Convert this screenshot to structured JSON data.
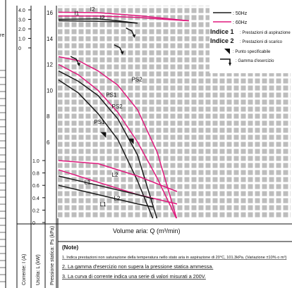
{
  "page": {
    "left_fragment": "re"
  },
  "labels": {
    "current_axis": "Corrente: I (A)",
    "output_axis": "Uscita: L (kW)",
    "pressure_axis": "Pressione statica: Ps (kPa)",
    "x_axis": "Volume aria: Q (m³/min)"
  },
  "legend": {
    "line_50": ": 50Hz",
    "line_60": ": 60Hz",
    "index1_key": "Indice 1",
    "index1_text": ": Prestazioni di aspirazione",
    "index2_key": "Indice 2",
    "index2_text": ": Prestazioni di scarico",
    "triangle_text": ": Punto specificabile",
    "range_text": ": Gamma d'esercizio"
  },
  "notes": {
    "title": "(Note)",
    "n1": "1. Indica prestazioni non saturazione della temperatura nello stato aria in aspirazione di 20°C, 101.3kPa. (Variazione ±10% o m³)",
    "n2": "2. La gamma d'esercizio non supera la pressione statica ammessa.",
    "n3": "3. La curva di corrente indica una serie di valori misurati a 200V."
  },
  "colors": {
    "hz50": "#1a1a1a",
    "hz60": "#e0197d",
    "grid": "#222222",
    "cell": "#bfbfbf"
  },
  "chart_data": {
    "type": "line",
    "x": {
      "label": "Volume aria: Q (m³/min)",
      "lim": [
        0,
        5
      ],
      "ticks": [
        0,
        1,
        2,
        3,
        4
      ]
    },
    "axes": {
      "current": {
        "label": "Corrente: I (A)",
        "ticks": [
          "0",
          "1.0",
          "2.0",
          "3.0",
          "4.0"
        ]
      },
      "output": {
        "label": "Uscita: L (kW)",
        "ticks": [
          "0",
          "0.2",
          "0.4",
          "0.6",
          "0.8",
          "1.0"
        ]
      },
      "pressure": {
        "label": "Pressione statica: Ps (kPa)",
        "lim": [
          0,
          16
        ],
        "ticks": [
          "6",
          "8",
          "10",
          "12",
          "14",
          "16"
        ]
      }
    },
    "series": [
      {
        "name": "I2",
        "freq": "60Hz",
        "x": [
          0,
          1,
          2,
          2.7,
          3.3
        ],
        "y_current": [
          3.75,
          3.7,
          3.4,
          3.1,
          2.85
        ]
      },
      {
        "name": "I1",
        "freq": "60Hz",
        "x": [
          0,
          1,
          2,
          2.7,
          3.3
        ],
        "y_current": [
          3.35,
          3.35,
          3.2,
          3.0,
          2.85
        ]
      },
      {
        "name": "I1",
        "freq": "50Hz",
        "x": [
          0,
          1,
          1.5,
          2.0
        ],
        "y_current": [
          3.0,
          3.05,
          2.85,
          2.6
        ]
      },
      {
        "name": "I2",
        "freq": "50Hz",
        "x": [
          0,
          1,
          1.5,
          2.0
        ],
        "y_current": [
          2.85,
          2.8,
          2.75,
          2.6
        ]
      },
      {
        "name": "PS2",
        "freq": "60Hz",
        "x": [
          0,
          0.5,
          1.0,
          1.5,
          2.0,
          2.5,
          3.0
        ],
        "y_pressure": [
          12.6,
          12.3,
          11.5,
          10.4,
          8.5,
          5.2,
          0
        ]
      },
      {
        "name": "PS2",
        "freq": "50Hz",
        "x": [
          0,
          0.5,
          1.0,
          1.5,
          2.0,
          2.5
        ],
        "y_pressure": [
          11.5,
          10.7,
          9.6,
          7.8,
          5.0,
          0
        ]
      },
      {
        "name": "PS1",
        "freq": "60Hz",
        "x": [
          0,
          0.5,
          1.0,
          1.5,
          2.0,
          2.5,
          3.0
        ],
        "y_pressure": [
          12.0,
          11.2,
          10.0,
          8.3,
          6.0,
          3.2,
          0
        ]
      },
      {
        "name": "PS1",
        "freq": "50Hz",
        "x": [
          0,
          0.5,
          1.0,
          1.5,
          2.0,
          2.4
        ],
        "y_pressure": [
          10.8,
          9.8,
          8.2,
          6.2,
          3.0,
          0
        ]
      },
      {
        "name": "L2",
        "freq": "60Hz",
        "x": [
          0,
          1,
          2,
          3
        ],
        "y_output": [
          1.0,
          0.95,
          0.75,
          0.5
        ]
      },
      {
        "name": "L1",
        "freq": "60Hz",
        "x": [
          0,
          1,
          2,
          3
        ],
        "y_output": [
          0.85,
          0.65,
          0.45,
          0.3
        ]
      },
      {
        "name": "L1",
        "freq": "50Hz",
        "x": [
          0,
          1,
          2,
          2.4
        ],
        "y_output": [
          0.75,
          0.6,
          0.45,
          0.38
        ]
      },
      {
        "name": "L2",
        "freq": "50Hz",
        "x": [
          0,
          1,
          2,
          2.4
        ],
        "y_output": [
          0.6,
          0.45,
          0.3,
          0.25
        ]
      }
    ]
  }
}
